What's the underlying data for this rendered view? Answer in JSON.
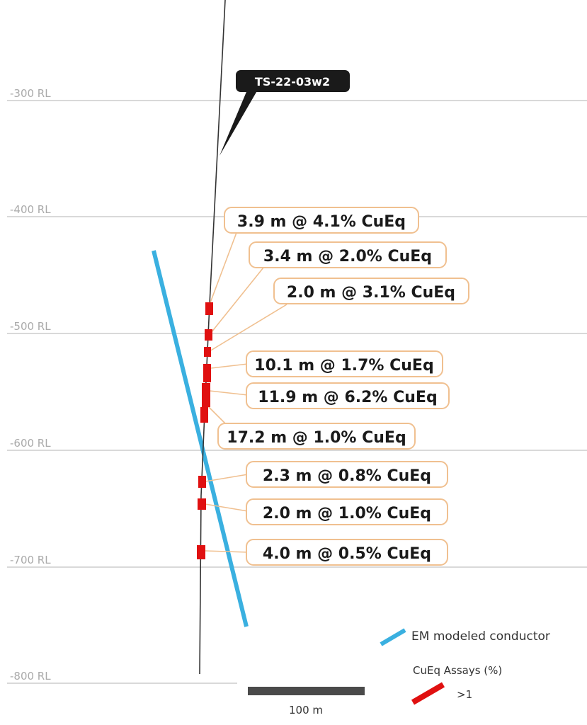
{
  "section": {
    "rl_levels": [
      "-300 RL",
      "-400 RL",
      "-500 RL",
      "-600 RL",
      "-700 RL",
      "-800 RL"
    ],
    "drillhole_label": "TS-22-03w2",
    "intercepts": [
      "3.9 m @ 4.1% CuEq",
      "3.4 m @ 2.0% CuEq",
      "2.0 m @ 3.1% CuEq",
      "10.1 m @ 1.7% CuEq",
      "11.9 m @ 6.2% CuEq",
      "17.2 m @ 1.0% CuEq",
      "2.3 m @ 0.8% CuEq",
      "2.0 m @ 1.0% CuEq",
      "4.0 m @ 0.5% CuEq"
    ],
    "scale_bar_label": "100 m"
  },
  "legend": {
    "conductor_label": "EM modeled conductor",
    "assays_title": "CuEq Assays (%)",
    "assay_class_label": ">1"
  },
  "colors": {
    "conductor": "#3ab0e0",
    "assay": "#e01010",
    "callout_border": "#f0c090",
    "drillhole": "#333333",
    "grid": "#d9d9d9"
  }
}
